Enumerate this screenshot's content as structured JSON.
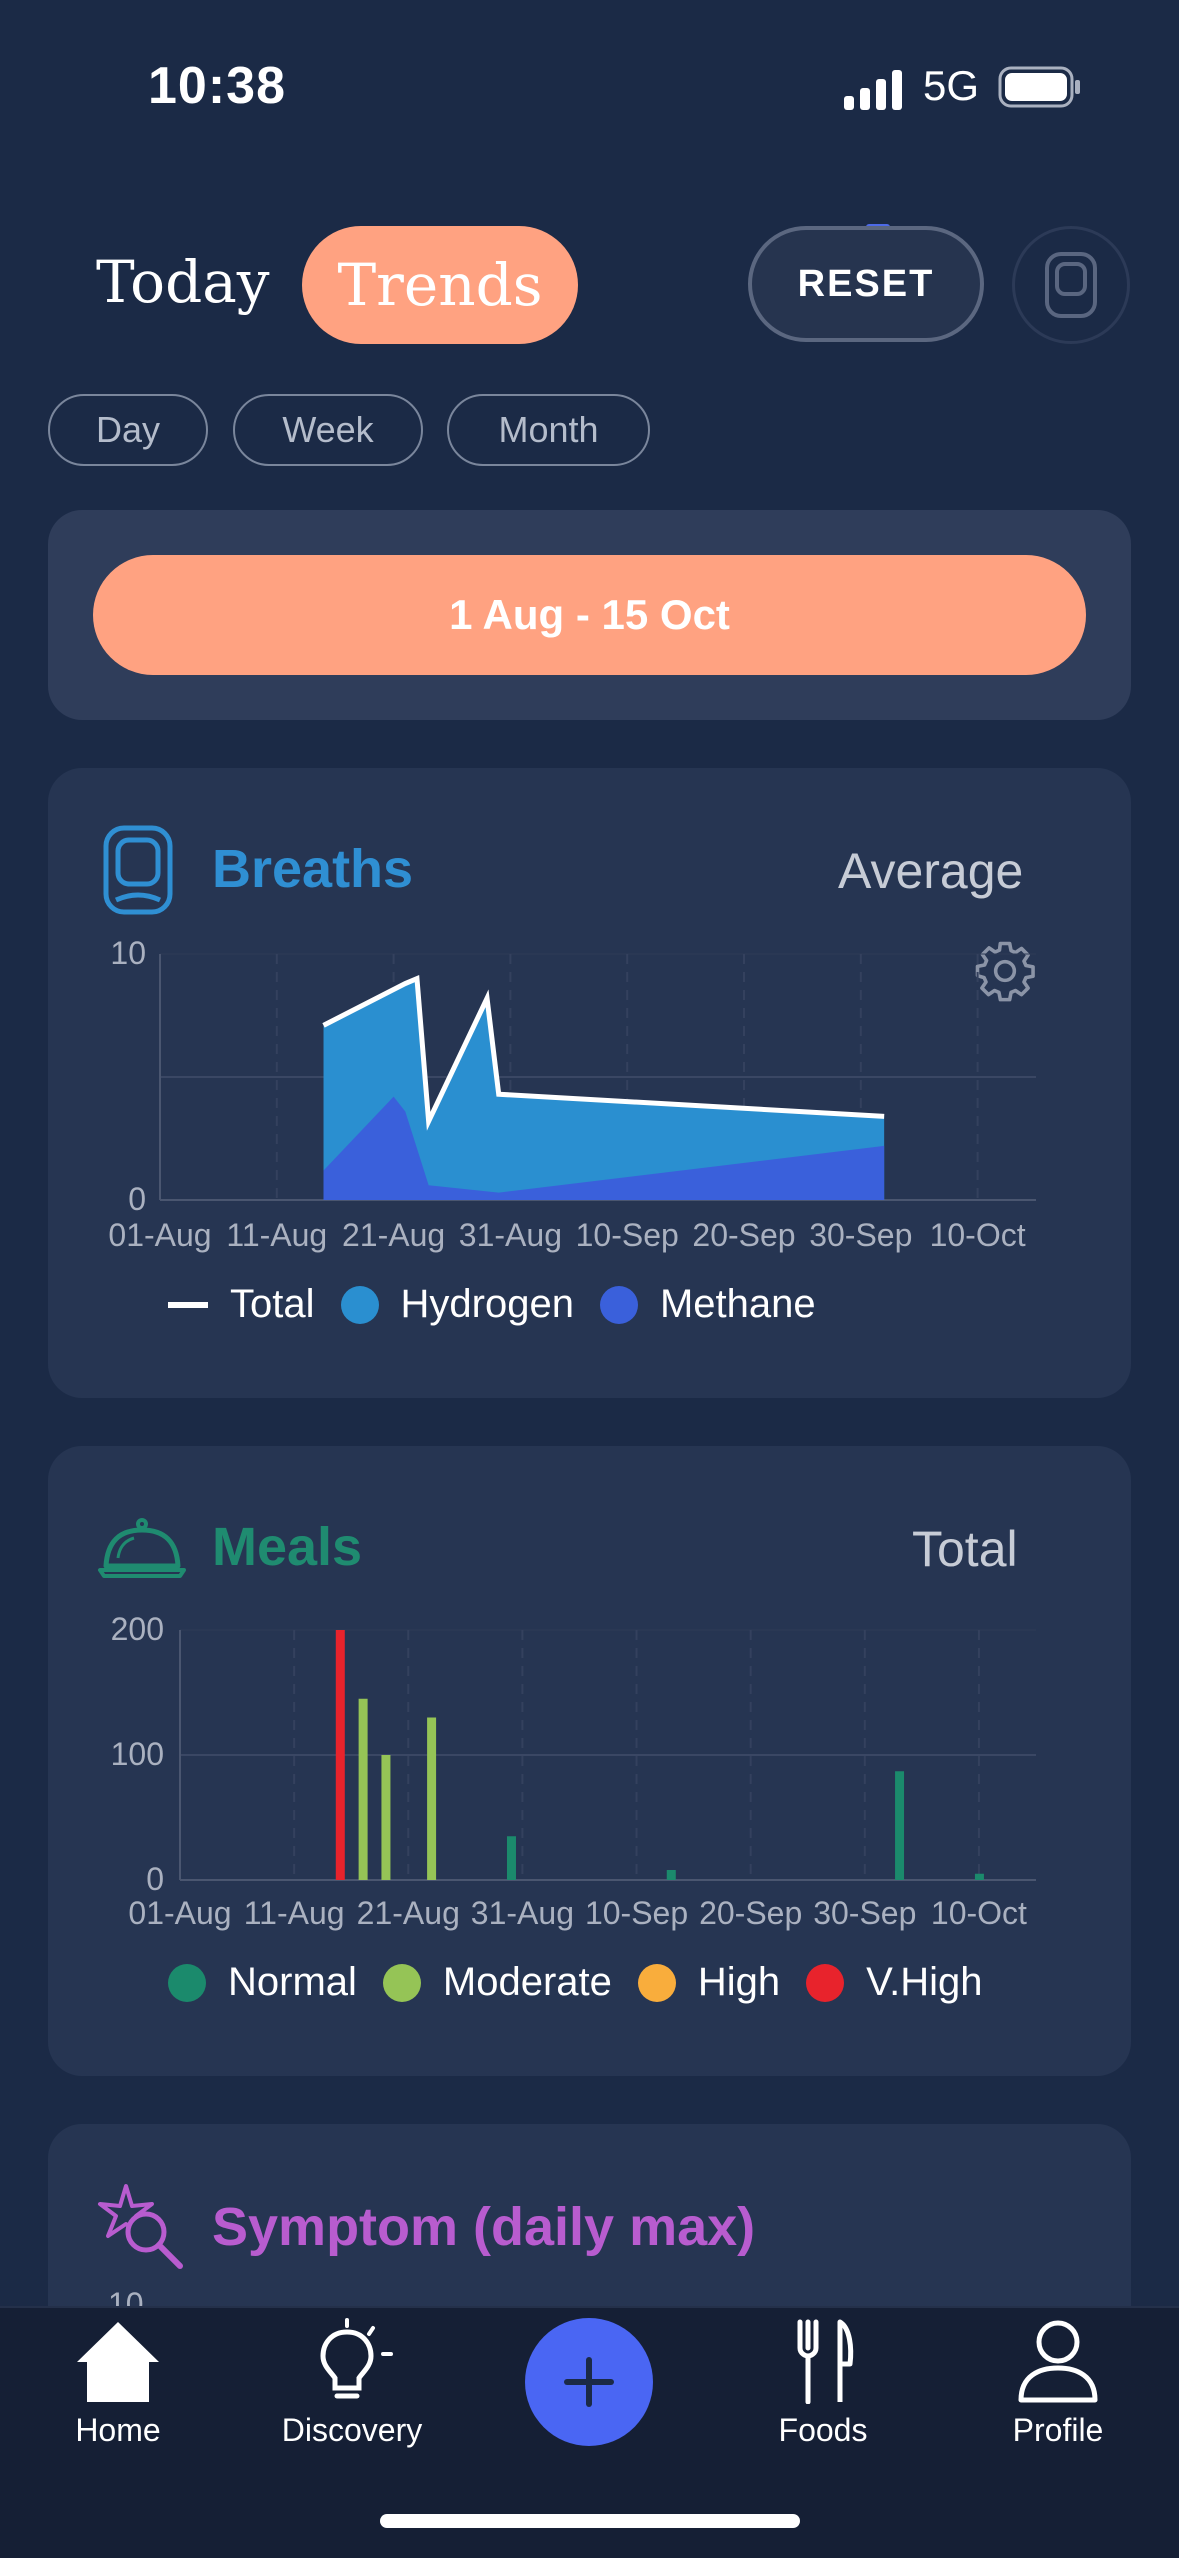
{
  "status_bar": {
    "time": "10:38",
    "network": "5G"
  },
  "header": {
    "tab_today": "Today",
    "tab_trends": "Trends",
    "reset_label": "RESET"
  },
  "periods": [
    "Day",
    "Week",
    "Month"
  ],
  "date_range": "1 Aug - 15 Oct",
  "breaths": {
    "title": "Breaths",
    "aggregate": "Average",
    "legend": [
      "Total",
      "Hydrogen",
      "Methane"
    ]
  },
  "meals": {
    "title": "Meals",
    "aggregate": "Total",
    "legend": [
      "Normal",
      "Moderate",
      "High",
      "V.High"
    ]
  },
  "symptom": {
    "title": "Symptom (daily max)",
    "partial_tick": "10"
  },
  "nav": {
    "home": "Home",
    "discovery": "Discovery",
    "foods": "Foods",
    "profile": "Profile"
  },
  "colors": {
    "accent": "#ffa281",
    "background": "#1b2a46",
    "card": "#263552",
    "hydrogen": "#2a8fd0",
    "methane": "#3a60db",
    "breaths_title": "#2f8fd3",
    "meals_title": "#1f8b70",
    "normal": "#1b8a6c",
    "moderate": "#95c456",
    "high": "#f9ad3c",
    "vhigh": "#e8232c",
    "symptom": "#b85ccf",
    "plus": "#4a66f3"
  },
  "chart_data": [
    {
      "type": "area",
      "title": "Breaths",
      "xlabel": "",
      "ylabel": "",
      "x_ticks": [
        "01-Aug",
        "11-Aug",
        "21-Aug",
        "31-Aug",
        "10-Sep",
        "20-Sep",
        "30-Sep",
        "10-Oct"
      ],
      "y_ticks": [
        "10",
        "0"
      ],
      "ylim": [
        0,
        10
      ],
      "series": [
        {
          "name": "Total",
          "x": [
            14,
            21,
            22,
            23,
            28,
            29,
            62
          ],
          "values": [
            7.1,
            8.8,
            9.0,
            3.2,
            8.2,
            4.3,
            3.4
          ]
        },
        {
          "name": "Hydrogen",
          "x": [
            14,
            21,
            22,
            23,
            28,
            29,
            62
          ],
          "values": [
            7.1,
            8.8,
            9.0,
            3.2,
            8.2,
            4.3,
            3.4
          ]
        },
        {
          "name": "Methane",
          "x": [
            14,
            20,
            21,
            23,
            29,
            62
          ],
          "values": [
            1.2,
            4.2,
            3.6,
            0.6,
            0.3,
            2.2
          ]
        }
      ]
    },
    {
      "type": "bar",
      "title": "Meals",
      "x_ticks": [
        "01-Aug",
        "11-Aug",
        "21-Aug",
        "31-Aug",
        "10-Sep",
        "20-Sep",
        "30-Sep",
        "10-Oct"
      ],
      "y_ticks": [
        "200",
        "100",
        "0"
      ],
      "ylim": [
        0,
        200
      ],
      "bars": [
        {
          "x": 14,
          "value": 200,
          "category": "V.High"
        },
        {
          "x": 16,
          "value": 145,
          "category": "Moderate"
        },
        {
          "x": 18,
          "value": 100,
          "category": "Moderate"
        },
        {
          "x": 22,
          "value": 130,
          "category": "Moderate"
        },
        {
          "x": 29,
          "value": 35,
          "category": "Normal"
        },
        {
          "x": 43,
          "value": 8,
          "category": "Normal"
        },
        {
          "x": 63,
          "value": 87,
          "category": "Normal"
        },
        {
          "x": 70,
          "value": 5,
          "category": "Normal"
        }
      ]
    }
  ]
}
